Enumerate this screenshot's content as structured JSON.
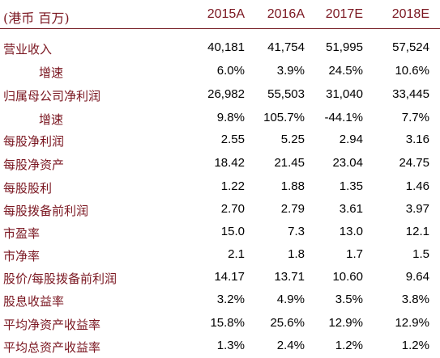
{
  "header": {
    "unit": "(港币  百万)",
    "years": [
      "2015A",
      "2016A",
      "2017E",
      "2018E"
    ]
  },
  "rows": [
    {
      "label": "营业收入",
      "indent": false,
      "values": [
        "40,181",
        "41,754",
        "51,995",
        "57,524"
      ]
    },
    {
      "label": "增速",
      "indent": true,
      "values": [
        "6.0%",
        "3.9%",
        "24.5%",
        "10.6%"
      ]
    },
    {
      "label": "归属母公司净利润",
      "indent": false,
      "values": [
        "26,982",
        "55,503",
        "31,040",
        "33,445"
      ]
    },
    {
      "label": "增速",
      "indent": true,
      "values": [
        "9.8%",
        "105.7%",
        "-44.1%",
        "7.7%"
      ]
    },
    {
      "label": "每股净利润",
      "indent": false,
      "values": [
        "2.55",
        "5.25",
        "2.94",
        "3.16"
      ]
    },
    {
      "label": "每股净资产",
      "indent": false,
      "values": [
        "18.42",
        "21.45",
        "23.04",
        "24.75"
      ]
    },
    {
      "label": "每股股利",
      "indent": false,
      "values": [
        "1.22",
        "1.88",
        "1.35",
        "1.46"
      ]
    },
    {
      "label": "每股拨备前利润",
      "indent": false,
      "values": [
        "2.70",
        "2.79",
        "3.61",
        "3.97"
      ]
    },
    {
      "label": "市盈率",
      "indent": false,
      "values": [
        "15.0",
        "7.3",
        "13.0",
        "12.1"
      ]
    },
    {
      "label": "市净率",
      "indent": false,
      "values": [
        "2.1",
        "1.8",
        "1.7",
        "1.5"
      ]
    },
    {
      "label": "股价/每股拨备前利润",
      "indent": false,
      "values": [
        "14.17",
        "13.71",
        "10.60",
        "9.64"
      ]
    },
    {
      "label": "股息收益率",
      "indent": false,
      "values": [
        "3.2%",
        "4.9%",
        "3.5%",
        "3.8%"
      ]
    },
    {
      "label": "平均净资产收益率",
      "indent": false,
      "values": [
        "15.8%",
        "25.6%",
        "12.9%",
        "12.9%"
      ]
    },
    {
      "label": "平均总资产收益率",
      "indent": false,
      "values": [
        "1.3%",
        "2.4%",
        "1.2%",
        "1.2%"
      ]
    }
  ]
}
